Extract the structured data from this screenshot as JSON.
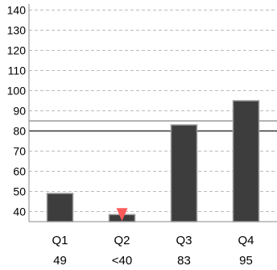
{
  "chart_data": {
    "type": "bar",
    "categories": [
      "Q1",
      "Q2",
      "Q3",
      "Q4"
    ],
    "values": [
      49,
      38.5,
      83,
      95
    ],
    "value_labels": [
      "49",
      "<40",
      "83",
      "95"
    ],
    "ylim": [
      35,
      143
    ],
    "y_ticks": [
      "140",
      "130",
      "120",
      "110",
      "100",
      "90",
      "80",
      "70",
      "60",
      "50",
      "40"
    ],
    "reference_lines": [
      {
        "value": 80,
        "color": "#333333"
      },
      {
        "value": 85,
        "color": "#999999"
      }
    ],
    "marker": {
      "category": "Q2",
      "shape": "down-triangle",
      "color": "#ff5a5a"
    },
    "grid": true,
    "colors": {
      "bar": "#3d3d3d",
      "bar_stroke": "#999999",
      "grid": "#bbbbbb",
      "axis": "#888888"
    }
  }
}
